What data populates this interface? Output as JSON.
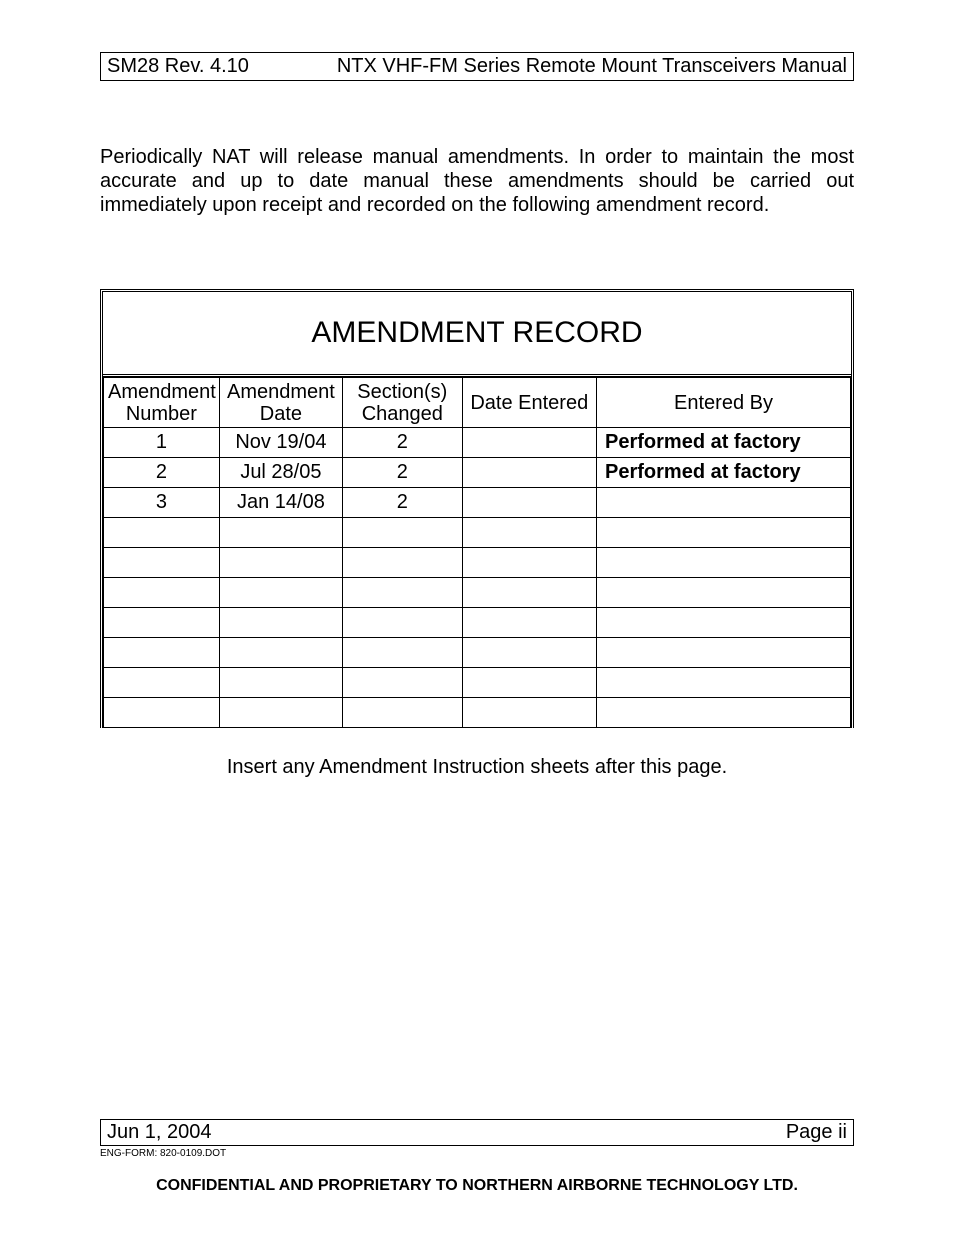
{
  "header": {
    "left": "SM28 Rev. 4.10",
    "right": "NTX VHF-FM Series Remote Mount Transceivers Manual"
  },
  "intro_text": "Periodically NAT will release manual amendments.  In order to maintain the most accurate and up to date manual these amendments should be carried out immediately upon receipt and recorded on the following amendment record.",
  "record": {
    "title": "AMENDMENT RECORD",
    "columns": [
      "Amendment Number",
      "Amendment Date",
      "Section(s) Changed",
      "Date Entered",
      "Entered By"
    ],
    "rows": [
      {
        "num": "1",
        "date": "Nov 19/04",
        "sections": "2",
        "date_entered": "",
        "entered_by": "Performed at factory"
      },
      {
        "num": "2",
        "date": "Jul 28/05",
        "sections": "2",
        "date_entered": "",
        "entered_by": "Performed at factory"
      },
      {
        "num": "3",
        "date": "Jan 14/08",
        "sections": "2",
        "date_entered": "",
        "entered_by": ""
      },
      {
        "num": "",
        "date": "",
        "sections": "",
        "date_entered": "",
        "entered_by": ""
      },
      {
        "num": "",
        "date": "",
        "sections": "",
        "date_entered": "",
        "entered_by": ""
      },
      {
        "num": "",
        "date": "",
        "sections": "",
        "date_entered": "",
        "entered_by": ""
      },
      {
        "num": "",
        "date": "",
        "sections": "",
        "date_entered": "",
        "entered_by": ""
      },
      {
        "num": "",
        "date": "",
        "sections": "",
        "date_entered": "",
        "entered_by": ""
      },
      {
        "num": "",
        "date": "",
        "sections": "",
        "date_entered": "",
        "entered_by": ""
      },
      {
        "num": "",
        "date": "",
        "sections": "",
        "date_entered": "",
        "entered_by": ""
      }
    ]
  },
  "insert_note": "Insert any Amendment Instruction sheets after this page.",
  "footer": {
    "left": "Jun 1, 2004",
    "right": "Page ii",
    "eng_form": "ENG-FORM: 820-0109.DOT",
    "confidential": "CONFIDENTIAL AND PROPRIETARY TO NORTHERN AIRBORNE TECHNOLOGY LTD."
  }
}
